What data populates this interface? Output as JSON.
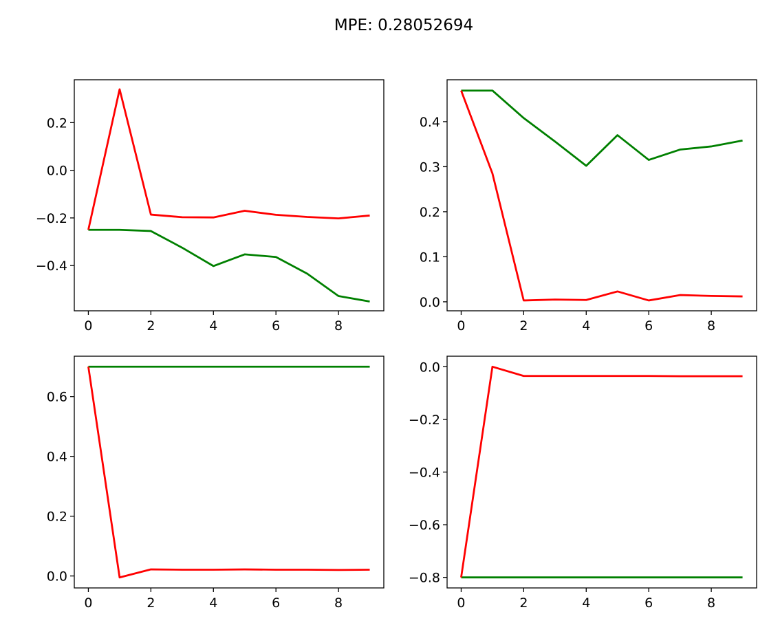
{
  "figure": {
    "suptitle": "MPE: 0.28052694"
  },
  "colors": {
    "green": "#008000",
    "red": "#ff0000",
    "axes": "#000000"
  },
  "chart_data": [
    {
      "type": "line",
      "title": "",
      "x": [
        0,
        1,
        2,
        3,
        4,
        5,
        6,
        7,
        8,
        9
      ],
      "xlim": [
        -0.45,
        9.45
      ],
      "ylim": [
        -0.59,
        0.38
      ],
      "xticks": [
        0,
        2,
        4,
        6,
        8
      ],
      "yticks": [
        -0.4,
        -0.2,
        0.0,
        0.2
      ],
      "ytick_labels": [
        "−0.4",
        "−0.2",
        "0.0",
        "0.2"
      ],
      "series": [
        {
          "color": "green",
          "values": [
            -0.25,
            -0.25,
            -0.255,
            -0.325,
            -0.402,
            -0.353,
            -0.364,
            -0.434,
            -0.528,
            -0.551
          ]
        },
        {
          "color": "red",
          "values": [
            -0.25,
            0.34,
            -0.186,
            -0.197,
            -0.198,
            -0.17,
            -0.187,
            -0.196,
            -0.202,
            -0.19
          ]
        }
      ]
    },
    {
      "type": "line",
      "title": "",
      "x": [
        0,
        1,
        2,
        3,
        4,
        5,
        6,
        7,
        8,
        9
      ],
      "xlim": [
        -0.45,
        9.45
      ],
      "ylim": [
        -0.02,
        0.493
      ],
      "xticks": [
        0,
        2,
        4,
        6,
        8
      ],
      "yticks": [
        0.0,
        0.1,
        0.2,
        0.3,
        0.4
      ],
      "ytick_labels": [
        "0.0",
        "0.1",
        "0.2",
        "0.3",
        "0.4"
      ],
      "series": [
        {
          "color": "green",
          "values": [
            0.469,
            0.469,
            0.408,
            0.356,
            0.302,
            0.37,
            0.315,
            0.338,
            0.345,
            0.358
          ]
        },
        {
          "color": "red",
          "values": [
            0.469,
            0.285,
            0.003,
            0.005,
            0.004,
            0.023,
            0.003,
            0.015,
            0.013,
            0.012
          ]
        }
      ]
    },
    {
      "type": "line",
      "title": "",
      "x": [
        0,
        1,
        2,
        3,
        4,
        5,
        6,
        7,
        8,
        9
      ],
      "xlim": [
        -0.45,
        9.45
      ],
      "ylim": [
        -0.04,
        0.735
      ],
      "xticks": [
        0,
        2,
        4,
        6,
        8
      ],
      "yticks": [
        0.0,
        0.2,
        0.4,
        0.6
      ],
      "ytick_labels": [
        "0.0",
        "0.2",
        "0.4",
        "0.6"
      ],
      "series": [
        {
          "color": "green",
          "values": [
            0.7,
            0.7,
            0.7,
            0.7,
            0.7,
            0.7,
            0.7,
            0.7,
            0.7,
            0.7
          ]
        },
        {
          "color": "red",
          "values": [
            0.7,
            -0.005,
            0.022,
            0.021,
            0.021,
            0.022,
            0.021,
            0.021,
            0.02,
            0.021
          ]
        }
      ]
    },
    {
      "type": "line",
      "title": "",
      "x": [
        0,
        1,
        2,
        3,
        4,
        5,
        6,
        7,
        8,
        9
      ],
      "xlim": [
        -0.45,
        9.45
      ],
      "ylim": [
        -0.84,
        0.04
      ],
      "xticks": [
        0,
        2,
        4,
        6,
        8
      ],
      "yticks": [
        -0.8,
        -0.6,
        -0.4,
        -0.2,
        0.0
      ],
      "ytick_labels": [
        "−0.8",
        "−0.6",
        "−0.4",
        "−0.2",
        "0.0"
      ],
      "series": [
        {
          "color": "green",
          "values": [
            -0.8,
            -0.8,
            -0.8,
            -0.8,
            -0.8,
            -0.8,
            -0.8,
            -0.8,
            -0.8,
            -0.8
          ]
        },
        {
          "color": "red",
          "values": [
            -0.8,
            0.0,
            -0.035,
            -0.035,
            -0.035,
            -0.035,
            -0.035,
            -0.036,
            -0.036,
            -0.036
          ]
        }
      ]
    }
  ]
}
